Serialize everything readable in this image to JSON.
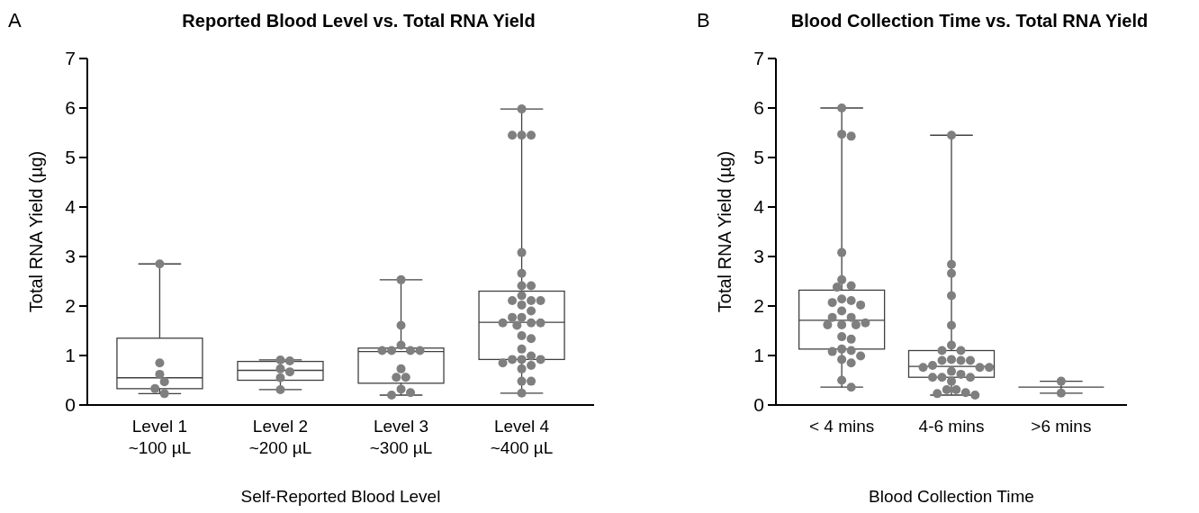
{
  "chart_data": [
    {
      "type": "box",
      "title": "Reported Blood Level vs. Total RNA Yield",
      "xlabel": "Self-Reported Blood Level",
      "ylabel": "Total RNA Yield (µg)",
      "annotations": [
        "A"
      ],
      "categories": [
        "Level 1\n~100 µL",
        "Level 2\n~200 µL",
        "Level 3\n~300 µL",
        "Level 4\n~400 µL"
      ],
      "ylim": [
        0,
        7
      ],
      "yticks": [
        0,
        1,
        2,
        3,
        4,
        5,
        6,
        7
      ],
      "grid": false,
      "marker": "circle",
      "color": "#404040",
      "boxes": [
        {
          "low": 0.23,
          "q1": 0.33,
          "median": 0.55,
          "q3": 1.35,
          "high": 2.85
        },
        {
          "low": 0.31,
          "q1": 0.5,
          "median": 0.7,
          "q3": 0.88,
          "high": 0.91
        },
        {
          "low": 0.2,
          "q1": 0.44,
          "median": 1.08,
          "q3": 1.15,
          "high": 2.53
        },
        {
          "low": 0.24,
          "q1": 0.92,
          "median": 1.67,
          "q3": 2.3,
          "high": 5.98
        }
      ],
      "series": [
        {
          "type": "scatter",
          "color": "#7f7f7f",
          "x": [
            "Level 1\n~100 µL",
            "Level 1\n~100 µL",
            "Level 1\n~100 µL",
            "Level 1\n~100 µL",
            "Level 1\n~100 µL",
            "Level 1\n~100 µL",
            "Level 2\n~200 µL",
            "Level 2\n~200 µL",
            "Level 2\n~200 µL",
            "Level 2\n~200 µL",
            "Level 2\n~200 µL",
            "Level 2\n~200 µL",
            "Level 3\n~300 µL",
            "Level 3\n~300 µL",
            "Level 3\n~300 µL",
            "Level 3\n~300 µL",
            "Level 3\n~300 µL",
            "Level 3\n~300 µL",
            "Level 3\n~300 µL",
            "Level 3\n~300 µL",
            "Level 3\n~300 µL",
            "Level 3\n~300 µL",
            "Level 3\n~300 µL",
            "Level 3\n~300 µL",
            "Level 3\n~300 µL",
            "Level 4\n~400 µL",
            "Level 4\n~400 µL",
            "Level 4\n~400 µL",
            "Level 4\n~400 µL",
            "Level 4\n~400 µL",
            "Level 4\n~400 µL",
            "Level 4\n~400 µL",
            "Level 4\n~400 µL",
            "Level 4\n~400 µL",
            "Level 4\n~400 µL",
            "Level 4\n~400 µL",
            "Level 4\n~400 µL",
            "Level 4\n~400 µL",
            "Level 4\n~400 µL",
            "Level 4\n~400 µL",
            "Level 4\n~400 µL",
            "Level 4\n~400 µL",
            "Level 4\n~400 µL",
            "Level 4\n~400 µL",
            "Level 4\n~400 µL",
            "Level 4\n~400 µL",
            "Level 4\n~400 µL",
            "Level 4\n~400 µL",
            "Level 4\n~400 µL",
            "Level 4\n~400 µL",
            "Level 4\n~400 µL",
            "Level 4\n~400 µL",
            "Level 4\n~400 µL",
            "Level 4\n~400 µL",
            "Level 4\n~400 µL",
            "Level 4\n~400 µL",
            "Level 4\n~400 µL",
            "Level 4\n~400 µL"
          ],
          "values": [
            2.85,
            0.85,
            0.62,
            0.47,
            0.33,
            0.23,
            0.91,
            0.89,
            0.73,
            0.67,
            0.55,
            0.31,
            2.53,
            1.61,
            1.21,
            1.1,
            1.1,
            1.1,
            1.1,
            0.73,
            0.56,
            0.56,
            0.32,
            0.25,
            0.2,
            5.98,
            5.45,
            5.45,
            5.45,
            3.08,
            2.66,
            2.41,
            2.41,
            2.21,
            2.11,
            2.11,
            2.11,
            2.02,
            1.9,
            1.77,
            1.77,
            1.66,
            1.66,
            1.66,
            1.61,
            1.4,
            1.34,
            1.13,
            0.99,
            0.92,
            0.92,
            0.92,
            0.85,
            0.8,
            0.73,
            0.48,
            0.48,
            0.24
          ]
        }
      ]
    },
    {
      "type": "box",
      "title": "Blood Collection Time vs. Total RNA Yield",
      "xlabel": "Blood Collection Time",
      "ylabel": "Total RNA Yield (µg)",
      "annotations": [
        "B"
      ],
      "categories": [
        "< 4 mins",
        "4-6 mins",
        ">6 mins"
      ],
      "ylim": [
        0,
        7
      ],
      "yticks": [
        0,
        1,
        2,
        3,
        4,
        5,
        6,
        7
      ],
      "grid": false,
      "marker": "circle",
      "color": "#404040",
      "boxes": [
        {
          "low": 0.36,
          "q1": 1.13,
          "median": 1.71,
          "q3": 2.32,
          "high": 6.0
        },
        {
          "low": 0.2,
          "q1": 0.56,
          "median": 0.78,
          "q3": 1.1,
          "high": 5.45
        },
        {
          "low": 0.24,
          "q1": 0.36,
          "median": 0.36,
          "q3": 0.36,
          "high": 0.48
        }
      ],
      "series": [
        {
          "type": "scatter",
          "color": "#7f7f7f",
          "x": [
            "< 4 mins",
            "< 4 mins",
            "< 4 mins",
            "< 4 mins",
            "< 4 mins",
            "< 4 mins",
            "< 4 mins",
            "< 4 mins",
            "< 4 mins",
            "< 4 mins",
            "< 4 mins",
            "< 4 mins",
            "< 4 mins",
            "< 4 mins",
            "< 4 mins",
            "< 4 mins",
            "< 4 mins",
            "< 4 mins",
            "< 4 mins",
            "< 4 mins",
            "< 4 mins",
            "< 4 mins",
            "< 4 mins",
            "< 4 mins",
            "< 4 mins",
            "< 4 mins",
            "< 4 mins",
            "< 4 mins",
            "4-6 mins",
            "4-6 mins",
            "4-6 mins",
            "4-6 mins",
            "4-6 mins",
            "4-6 mins",
            "4-6 mins",
            "4-6 mins",
            "4-6 mins",
            "4-6 mins",
            "4-6 mins",
            "4-6 mins",
            "4-6 mins",
            "4-6 mins",
            "4-6 mins",
            "4-6 mins",
            "4-6 mins",
            "4-6 mins",
            "4-6 mins",
            "4-6 mins",
            "4-6 mins",
            "4-6 mins",
            "4-6 mins",
            "4-6 mins",
            "4-6 mins",
            "4-6 mins",
            "4-6 mins",
            ">6 mins",
            ">6 mins"
          ],
          "values": [
            6.0,
            5.47,
            5.43,
            3.08,
            2.53,
            2.41,
            2.38,
            2.14,
            2.11,
            2.07,
            2.02,
            1.9,
            1.77,
            1.77,
            1.62,
            1.62,
            1.62,
            1.66,
            1.38,
            1.33,
            1.13,
            1.1,
            1.08,
            0.99,
            0.92,
            0.85,
            0.5,
            0.36,
            5.45,
            2.84,
            2.66,
            2.21,
            1.61,
            1.21,
            1.1,
            1.1,
            0.92,
            0.9,
            0.9,
            0.9,
            0.8,
            0.76,
            0.76,
            0.76,
            0.68,
            0.62,
            0.56,
            0.56,
            0.56,
            0.48,
            0.31,
            0.31,
            0.25,
            0.23,
            0.2,
            0.48,
            0.24
          ]
        }
      ]
    }
  ]
}
